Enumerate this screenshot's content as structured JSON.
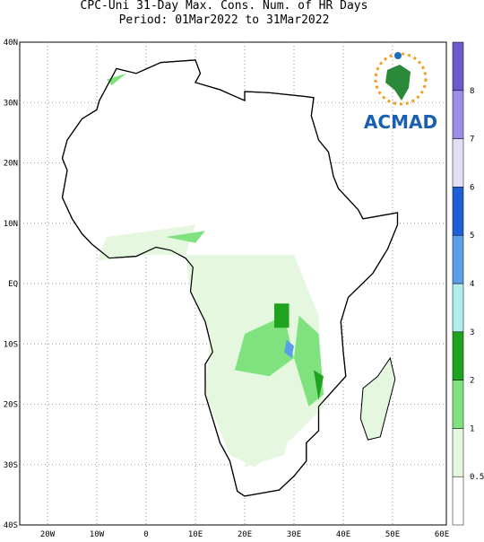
{
  "header": {
    "title": "CPC-Uni 31-Day Max. Cons. Num. of HR Days",
    "subtitle": "Period: 01Mar2022 to 31Mar2022"
  },
  "axes": {
    "lat_labels": [
      "40N",
      "30N",
      "20N",
      "10N",
      "EQ",
      "10S",
      "20S",
      "30S",
      "40S"
    ],
    "lon_labels": [
      "20W",
      "10W",
      "0",
      "10E",
      "20E",
      "30E",
      "40E",
      "50E",
      "60E"
    ]
  },
  "colorbar": {
    "levels": [
      0.5,
      1,
      2,
      3,
      4,
      5,
      6,
      7,
      8
    ],
    "colors": [
      "#ffffff",
      "#e6f7e0",
      "#7fe27f",
      "#1fa31f",
      "#b3ecec",
      "#5aa0e6",
      "#1e5fd6",
      "#e0e0f5",
      "#9b8fe8",
      "#6a5acd"
    ]
  },
  "logo": {
    "text": "ACMAD"
  }
}
